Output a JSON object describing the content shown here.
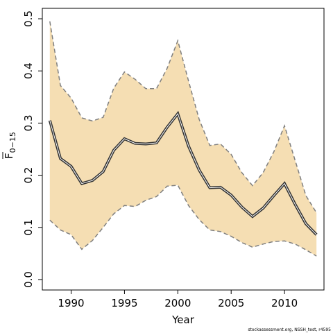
{
  "chart_data": {
    "type": "line",
    "xlabel": "Year",
    "ylabel_main": "F",
    "ylabel_sub": "0−15",
    "xlim": [
      1987.3,
      2013.7
    ],
    "ylim": [
      -0.02,
      0.52
    ],
    "x_ticks": [
      1990,
      1995,
      2000,
      2005,
      2010
    ],
    "x_tick_labels": [
      "1990",
      "1995",
      "2000",
      "2005",
      "2010"
    ],
    "y_ticks": [
      0.0,
      0.1,
      0.2,
      0.3,
      0.4,
      0.5
    ],
    "y_tick_labels": [
      "0.0",
      "0.1",
      "0.2",
      "0.3",
      "0.4",
      "0.5"
    ],
    "grid": false,
    "legend": "none",
    "colors": {
      "band": "#f5deb3",
      "line": "#333333",
      "bound": "#7f7f7f"
    },
    "x": [
      1988,
      1989,
      1990,
      1991,
      1992,
      1993,
      1994,
      1995,
      1996,
      1997,
      1998,
      1999,
      2000,
      2001,
      2002,
      2003,
      2004,
      2005,
      2006,
      2007,
      2008,
      2009,
      2010,
      2011,
      2012,
      2013
    ],
    "estimate": [
      0.305,
      0.232,
      0.217,
      0.184,
      0.19,
      0.207,
      0.248,
      0.27,
      0.261,
      0.26,
      0.262,
      0.292,
      0.318,
      0.256,
      0.21,
      0.176,
      0.177,
      0.162,
      0.139,
      0.121,
      0.137,
      0.161,
      0.184,
      0.144,
      0.107,
      0.086
    ],
    "upper": [
      0.495,
      0.372,
      0.348,
      0.31,
      0.304,
      0.311,
      0.367,
      0.398,
      0.384,
      0.366,
      0.366,
      0.405,
      0.458,
      0.381,
      0.307,
      0.257,
      0.26,
      0.24,
      0.205,
      0.18,
      0.205,
      0.245,
      0.295,
      0.228,
      0.161,
      0.128
    ],
    "lower": [
      0.114,
      0.095,
      0.086,
      0.058,
      0.075,
      0.1,
      0.126,
      0.142,
      0.14,
      0.152,
      0.159,
      0.179,
      0.181,
      0.142,
      0.115,
      0.095,
      0.092,
      0.083,
      0.071,
      0.062,
      0.068,
      0.073,
      0.074,
      0.068,
      0.057,
      0.045
    ]
  },
  "footer": "stockassessment.org, NSSH_test, r4595"
}
